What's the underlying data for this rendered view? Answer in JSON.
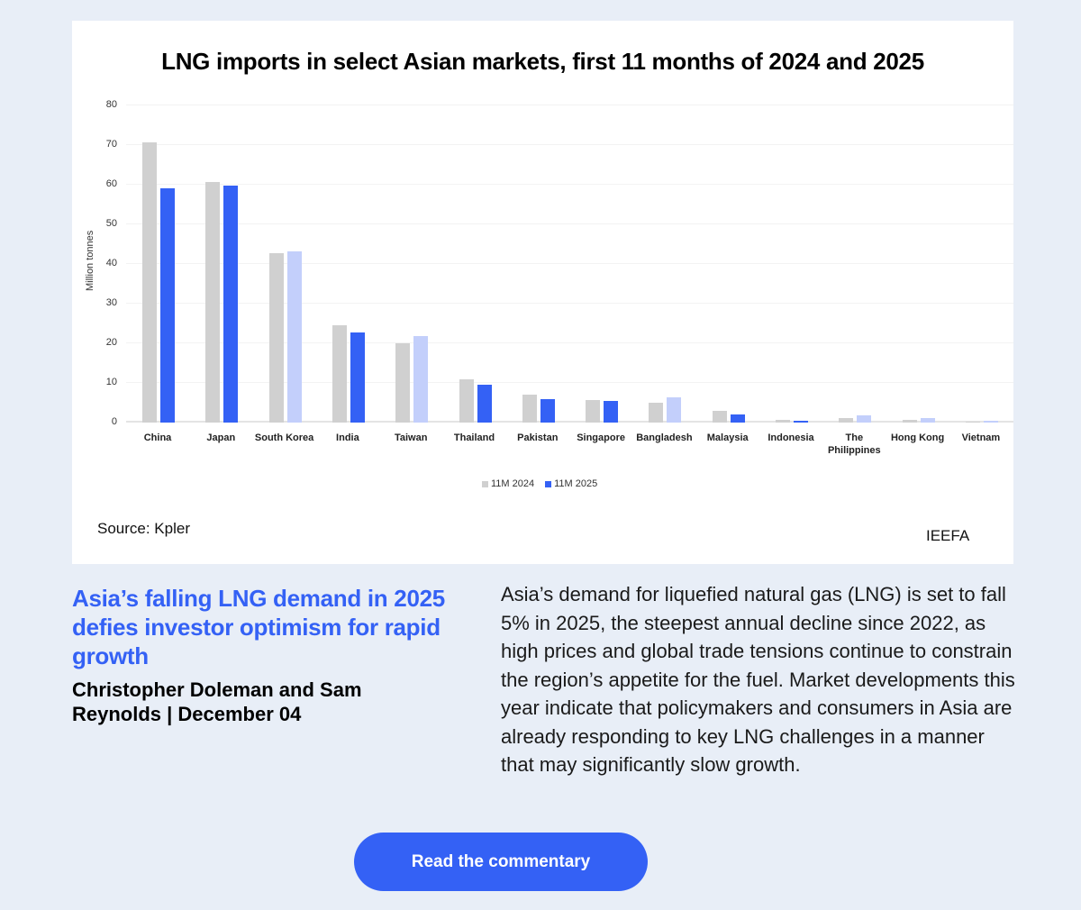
{
  "chart_data": {
    "type": "bar",
    "title": "LNG imports in select Asian markets, first 11 months of 2024 and 2025",
    "xlabel": "",
    "ylabel": "Million tonnes",
    "ylim": [
      0,
      80
    ],
    "yticks": [
      0,
      10,
      20,
      30,
      40,
      50,
      60,
      70,
      80
    ],
    "grid": true,
    "legend_position": "bottom",
    "categories": [
      "China",
      "Japan",
      "South Korea",
      "India",
      "Taiwan",
      "Thailand",
      "Pakistan",
      "Singapore",
      "Bangladesh",
      "Malaysia",
      "Indonesia",
      "The Philippines",
      "Hong Kong",
      "Vietnam"
    ],
    "series": [
      {
        "name": "11M 2024",
        "color": "#d0d0d0",
        "values": [
          70.7,
          60.7,
          42.7,
          24.5,
          20.0,
          10.9,
          7.0,
          5.7,
          5.0,
          3.0,
          0.7,
          1.2,
          0.7,
          0.3
        ]
      },
      {
        "name": "11M 2025",
        "color": "#3461f5",
        "color_increase": "#c3cffb",
        "values": [
          59.1,
          59.8,
          43.2,
          22.7,
          21.8,
          9.5,
          5.9,
          5.5,
          6.4,
          2.0,
          0.5,
          1.8,
          1.1,
          0.4
        ]
      }
    ],
    "source": "Source: Kpler",
    "credit": "IEEFA"
  },
  "colors": {
    "accent": "#3461f5",
    "increase_light": "#c3cffb",
    "bar_2024": "#d0d0d0",
    "background": "#e8eef7"
  },
  "article": {
    "title": "Asia’s falling LNG demand in 2025 defies investor optimism for rapid growth",
    "byline": "Christopher Doleman and Sam Reynolds | December 04",
    "summary": "Asia’s demand for liquefied natural gas (LNG) is set to fall 5% in 2025, the steepest annual decline since 2022, as high prices and global trade tensions continue to constrain the region’s appetite for the fuel. Market developments this year indicate that policymakers and consumers in Asia are already responding to key LNG challenges in a manner that may significantly slow growth.",
    "cta_label": "Read the commentary"
  }
}
